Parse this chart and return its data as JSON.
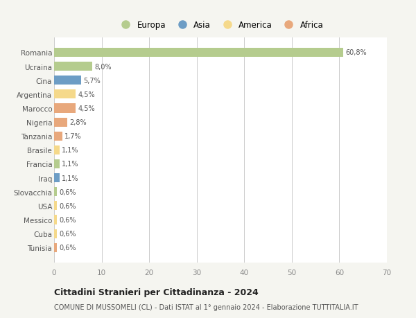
{
  "countries": [
    "Romania",
    "Ucraina",
    "Cina",
    "Argentina",
    "Marocco",
    "Nigeria",
    "Tanzania",
    "Brasile",
    "Francia",
    "Iraq",
    "Slovacchia",
    "USA",
    "Messico",
    "Cuba",
    "Tunisia"
  ],
  "values": [
    60.8,
    8.0,
    5.7,
    4.5,
    4.5,
    2.8,
    1.7,
    1.1,
    1.1,
    1.1,
    0.6,
    0.6,
    0.6,
    0.6,
    0.6
  ],
  "labels": [
    "60,8%",
    "8,0%",
    "5,7%",
    "4,5%",
    "4,5%",
    "2,8%",
    "1,7%",
    "1,1%",
    "1,1%",
    "1,1%",
    "0,6%",
    "0,6%",
    "0,6%",
    "0,6%",
    "0,6%"
  ],
  "continents": [
    "Europa",
    "Europa",
    "Asia",
    "America",
    "Africa",
    "Africa",
    "Africa",
    "America",
    "Europa",
    "Asia",
    "Europa",
    "America",
    "America",
    "America",
    "Africa"
  ],
  "colors": {
    "Europa": "#b5cc8e",
    "Asia": "#6d9dc5",
    "America": "#f5d98b",
    "Africa": "#e8a87c"
  },
  "xlim": [
    0,
    70
  ],
  "xticks": [
    0,
    10,
    20,
    30,
    40,
    50,
    60,
    70
  ],
  "title": "Cittadini Stranieri per Cittadinanza - 2024",
  "subtitle": "COMUNE DI MUSSOMELI (CL) - Dati ISTAT al 1° gennaio 2024 - Elaborazione TUTTITALIA.IT",
  "background_color": "#f5f5f0",
  "bar_background": "#ffffff",
  "grid_color": "#cccccc",
  "legend_order": [
    "Europa",
    "Asia",
    "America",
    "Africa"
  ]
}
